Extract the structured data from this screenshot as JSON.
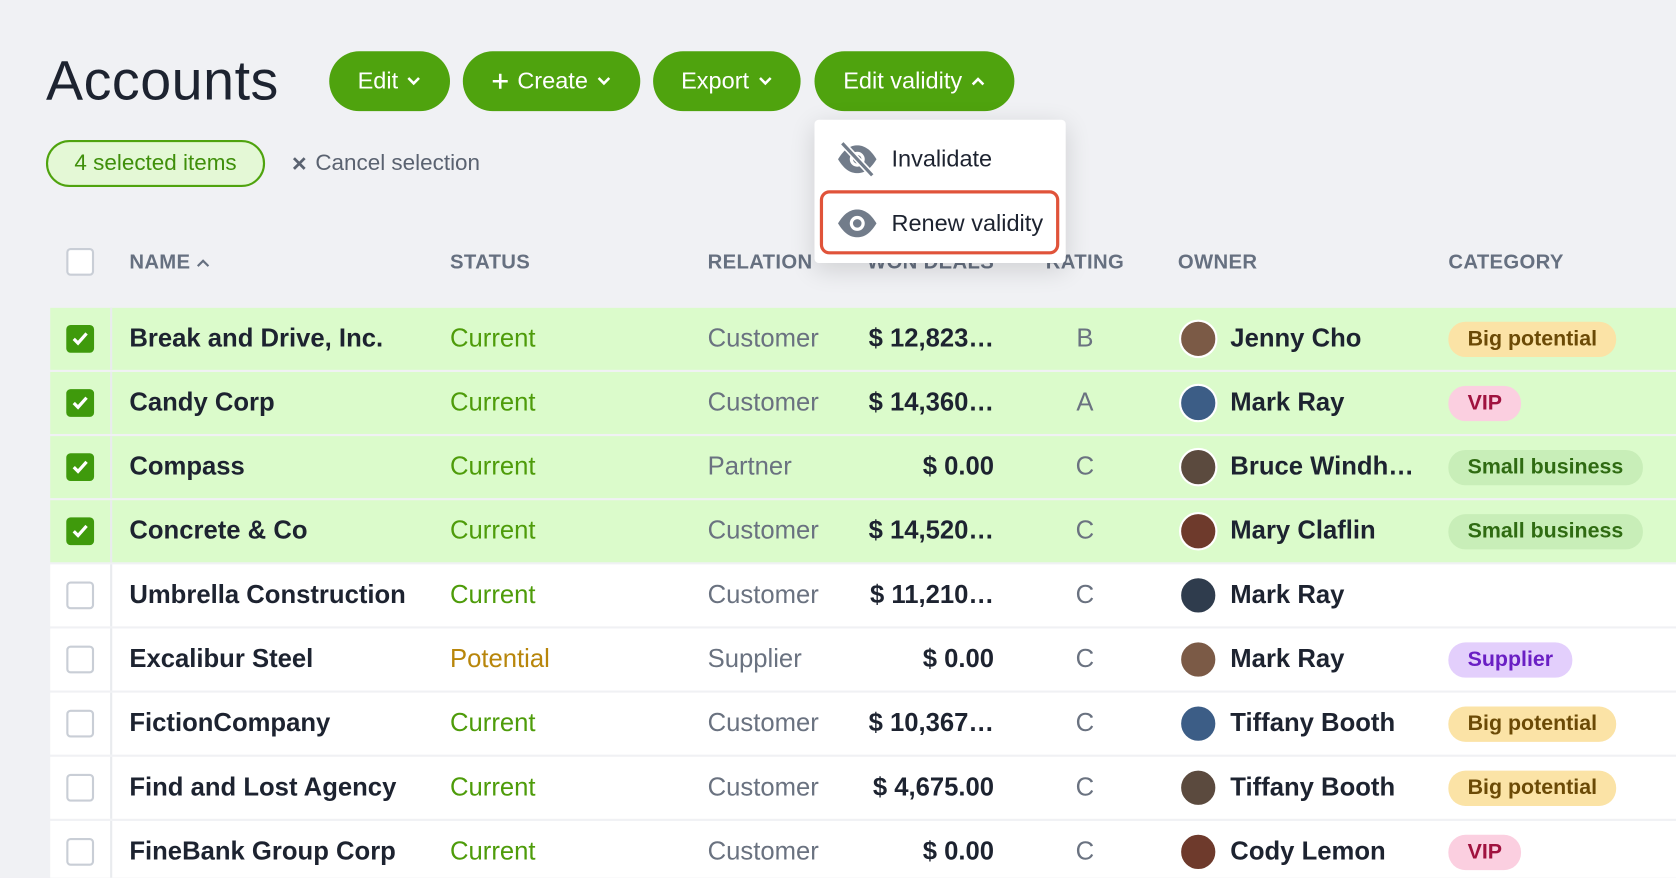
{
  "header": {
    "title": "Accounts",
    "buttons": [
      "Edit",
      "Create",
      "Export",
      "Edit validity"
    ]
  },
  "selection": {
    "count_label": "4 selected items",
    "cancel": "Cancel selection"
  },
  "dropdown": {
    "items": [
      "Invalidate",
      "Renew validity"
    ]
  },
  "table": {
    "columns": [
      "NAME",
      "STATUS",
      "RELATION",
      "WON DEALS",
      "RATING",
      "OWNER",
      "CATEGORY"
    ],
    "rows": [
      {
        "selected": true,
        "name": "Break and Drive, Inc.",
        "status": "Current",
        "status_color": "#4e9c0a",
        "relation": "Customer",
        "won_deals": "$ 12,823…",
        "rating": "B",
        "owner": "Jenny Cho",
        "category": "Big potential",
        "category_bg": "#fbe3a6",
        "category_fg": "#6b4a06"
      },
      {
        "selected": true,
        "name": "Candy Corp",
        "status": "Current",
        "status_color": "#4e9c0a",
        "relation": "Customer",
        "won_deals": "$ 14,360…",
        "rating": "A",
        "owner": "Mark Ray",
        "category": "VIP",
        "category_bg": "#fbcfe0",
        "category_fg": "#a0123f"
      },
      {
        "selected": true,
        "name": "Compass",
        "status": "Current",
        "status_color": "#4e9c0a",
        "relation": "Partner",
        "won_deals": "$ 0.00",
        "rating": "C",
        "owner": "Bruce Windh…",
        "category": "Small business",
        "category_bg": "#c8eeb8",
        "category_fg": "#2f6b12"
      },
      {
        "selected": true,
        "name": "Concrete & Co",
        "status": "Current",
        "status_color": "#4e9c0a",
        "relation": "Customer",
        "won_deals": "$ 14,520…",
        "rating": "C",
        "owner": "Mary Claflin",
        "category": "Small business",
        "category_bg": "#c8eeb8",
        "category_fg": "#2f6b12"
      },
      {
        "selected": false,
        "name": "Umbrella Construction",
        "status": "Current",
        "status_color": "#4e9c0a",
        "relation": "Customer",
        "won_deals": "$ 11,210…",
        "rating": "C",
        "owner": "Mark Ray",
        "category": null,
        "category_bg": null,
        "category_fg": null
      },
      {
        "selected": false,
        "name": "Excalibur Steel",
        "status": "Potential",
        "status_color": "#b8860b",
        "relation": "Supplier",
        "won_deals": "$ 0.00",
        "rating": "C",
        "owner": "Mark Ray",
        "category": "Supplier",
        "category_bg": "#e3cffc",
        "category_fg": "#6a1fc4"
      },
      {
        "selected": false,
        "name": "FictionCompany",
        "status": "Current",
        "status_color": "#4e9c0a",
        "relation": "Customer",
        "won_deals": "$ 10,367…",
        "rating": "C",
        "owner": "Tiffany Booth",
        "category": "Big potential",
        "category_bg": "#fbe3a6",
        "category_fg": "#6b4a06"
      },
      {
        "selected": false,
        "name": "Find and Lost Agency",
        "status": "Current",
        "status_color": "#4e9c0a",
        "relation": "Customer",
        "won_deals": "$ 4,675.00",
        "rating": "C",
        "owner": "Tiffany Booth",
        "category": "Big potential",
        "category_bg": "#fbe3a6",
        "category_fg": "#6b4a06"
      },
      {
        "selected": false,
        "name": "FineBank Group Corp",
        "status": "Current",
        "status_color": "#4e9c0a",
        "relation": "Customer",
        "won_deals": "$ 0.00",
        "rating": "C",
        "owner": "Cody Lemon",
        "category": "VIP",
        "category_bg": "#fbcfe0",
        "category_fg": "#a0123f"
      }
    ]
  }
}
